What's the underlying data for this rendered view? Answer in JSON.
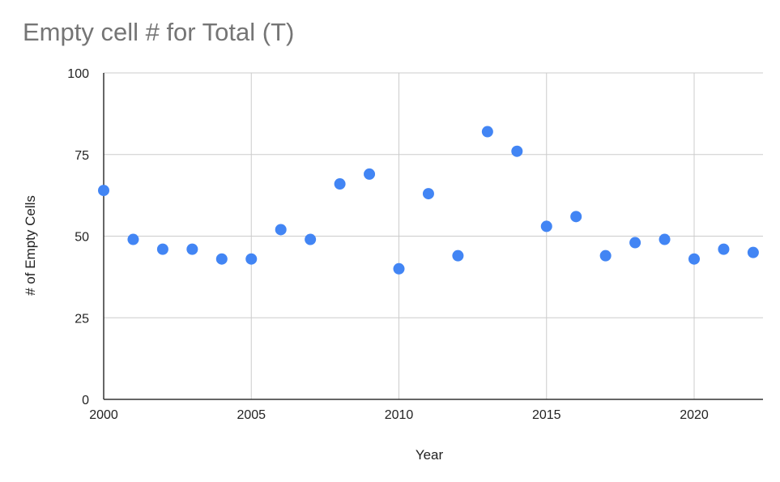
{
  "chart_data": {
    "type": "scatter",
    "title": "Empty cell # for Total (T)",
    "xlabel": "Year",
    "ylabel": "# of Empty Cells",
    "xlim": [
      2000,
      2022.3
    ],
    "ylim": [
      0,
      100
    ],
    "x_ticks": [
      2000,
      2005,
      2010,
      2015,
      2020
    ],
    "y_ticks": [
      0,
      25,
      50,
      75,
      100
    ],
    "grid": true,
    "legend": "none",
    "series": [
      {
        "color": "#4285f4",
        "points": [
          {
            "x": 2000,
            "y": 64
          },
          {
            "x": 2001,
            "y": 49
          },
          {
            "x": 2002,
            "y": 46
          },
          {
            "x": 2003,
            "y": 46
          },
          {
            "x": 2004,
            "y": 43
          },
          {
            "x": 2005,
            "y": 43
          },
          {
            "x": 2006,
            "y": 52
          },
          {
            "x": 2007,
            "y": 49
          },
          {
            "x": 2008,
            "y": 66
          },
          {
            "x": 2009,
            "y": 69
          },
          {
            "x": 2010,
            "y": 40
          },
          {
            "x": 2011,
            "y": 63
          },
          {
            "x": 2012,
            "y": 44
          },
          {
            "x": 2013,
            "y": 82
          },
          {
            "x": 2014,
            "y": 76
          },
          {
            "x": 2015,
            "y": 53
          },
          {
            "x": 2016,
            "y": 56
          },
          {
            "x": 2017,
            "y": 44
          },
          {
            "x": 2018,
            "y": 48
          },
          {
            "x": 2019,
            "y": 49
          },
          {
            "x": 2020,
            "y": 43
          },
          {
            "x": 2021,
            "y": 46
          },
          {
            "x": 2022,
            "y": 45
          }
        ]
      }
    ]
  }
}
